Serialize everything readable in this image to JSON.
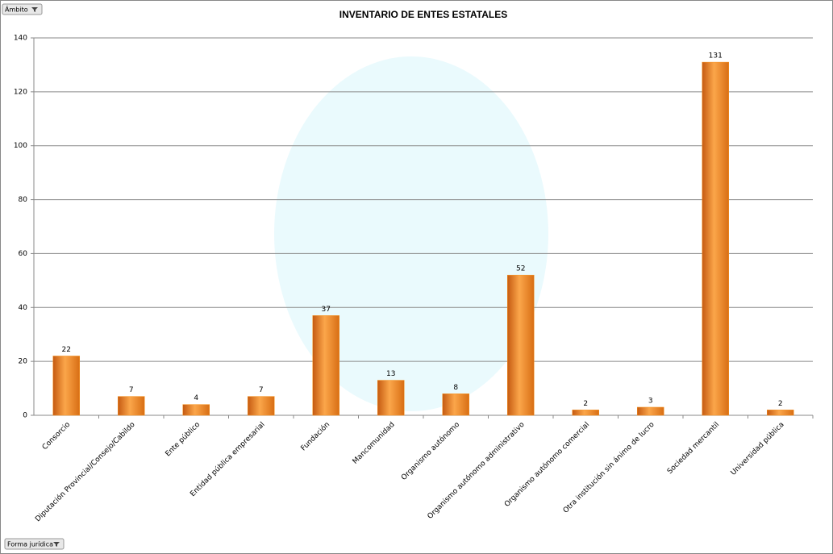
{
  "chart_data": {
    "type": "bar",
    "title": "INVENTARIO DE ENTES ESTATALES",
    "categories": [
      "Consorcio",
      "Diputación Provincial/Consejo/Cabildo",
      "Ente público",
      "Entidad pública empresarial",
      "Fundación",
      "Mancomunidad",
      "Organismo autónomo",
      "Organismo autónomo administrativo",
      "Organismo autónomo comercial",
      "Otra institución sin ánimo de lucro",
      "Sociedad mercantil",
      "Universidad pública"
    ],
    "values": [
      22,
      7,
      4,
      7,
      37,
      13,
      8,
      52,
      2,
      3,
      131,
      2
    ],
    "color": "#f7931e",
    "ylim": [
      0,
      140
    ],
    "yticks": [
      0,
      20,
      40,
      60,
      80,
      100,
      120,
      140
    ],
    "grid": true
  },
  "field_buttons": [
    "Ámbito",
    "Forma jurídica"
  ]
}
